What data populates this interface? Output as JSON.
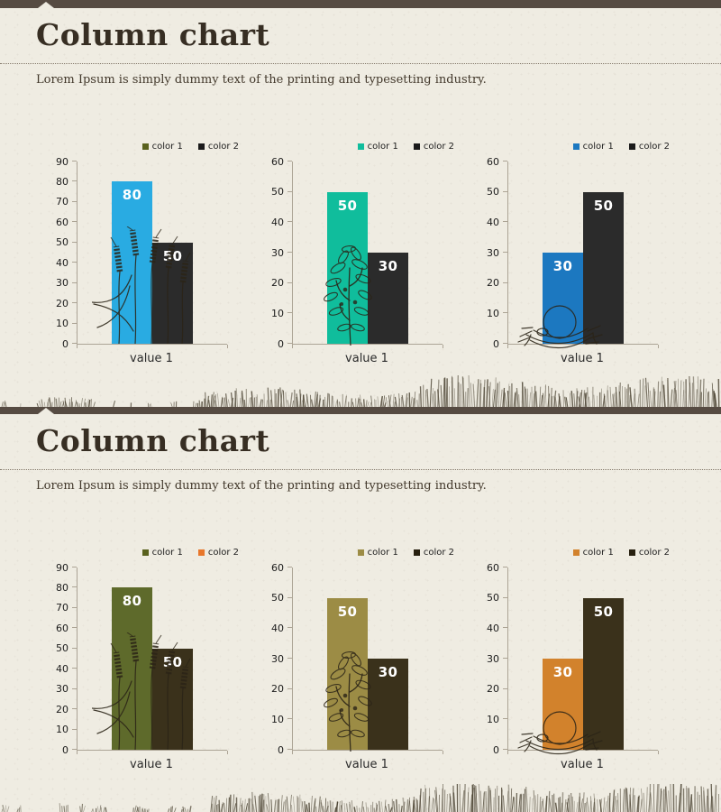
{
  "page": {
    "background": "#EFECE2",
    "accent_bar_color": "#564B42",
    "title_color": "#372E23",
    "axis_color": "#ACA495"
  },
  "panels": [
    {
      "title": "Column chart",
      "subtitle": "Lorem Ipsum is simply dummy text of the printing and typesetting industry.",
      "chart_ids": [
        0,
        1,
        2
      ]
    },
    {
      "title": "Column chart",
      "subtitle": "Lorem Ipsum is simply dummy text of the printing and typesetting industry.",
      "chart_ids": [
        3,
        4,
        5
      ]
    }
  ],
  "chart_data": [
    {
      "type": "bar",
      "categories": [
        "value 1"
      ],
      "series": [
        {
          "name": "color 1",
          "values": [
            80
          ],
          "bar_color": "#29ABE2",
          "legend_color": "#59611D",
          "label_color": "#FFFFFF"
        },
        {
          "name": "color 2",
          "values": [
            50
          ],
          "bar_color": "#2B2B2B",
          "legend_color": "#1A1A1A",
          "label_color": "#FFFFFF"
        }
      ],
      "ylim": [
        0,
        90
      ],
      "yticks": [
        0,
        10,
        20,
        30,
        40,
        50,
        60,
        70,
        80,
        90
      ],
      "legend_position": "top-right",
      "grid": false,
      "decoration": "wheat-illustration"
    },
    {
      "type": "bar",
      "categories": [
        "value 1"
      ],
      "series": [
        {
          "name": "color 1",
          "values": [
            50
          ],
          "bar_color": "#10BD9C",
          "legend_color": "#10BD9C",
          "label_color": "#FFFFFF"
        },
        {
          "name": "color 2",
          "values": [
            30
          ],
          "bar_color": "#2B2B2B",
          "legend_color": "#1A1A1A",
          "label_color": "#FFFFFF"
        }
      ],
      "ylim": [
        0,
        60
      ],
      "yticks": [
        0,
        10,
        20,
        30,
        40,
        50,
        60
      ],
      "legend_position": "top-right",
      "grid": false,
      "decoration": "sapling-illustration"
    },
    {
      "type": "bar",
      "categories": [
        "value 1"
      ],
      "series": [
        {
          "name": "color 1",
          "values": [
            30
          ],
          "bar_color": "#1C78C0",
          "legend_color": "#1C78C0",
          "label_color": "#FFFFFF"
        },
        {
          "name": "color 2",
          "values": [
            50
          ],
          "bar_color": "#2B2B2B",
          "legend_color": "#1A1A1A",
          "label_color": "#FFFFFF"
        }
      ],
      "ylim": [
        0,
        60
      ],
      "yticks": [
        0,
        10,
        20,
        30,
        40,
        50,
        60
      ],
      "legend_position": "top-right",
      "grid": false,
      "decoration": "nest-illustration"
    },
    {
      "type": "bar",
      "categories": [
        "value 1"
      ],
      "series": [
        {
          "name": "color 1",
          "values": [
            80
          ],
          "bar_color": "#5E6A2B",
          "legend_color": "#59611D",
          "label_color": "#FFFFFF"
        },
        {
          "name": "color 2",
          "values": [
            50
          ],
          "bar_color": "#3A311B",
          "legend_color": "#E8772B",
          "label_color": "#FFFFFF"
        }
      ],
      "ylim": [
        0,
        90
      ],
      "yticks": [
        0,
        10,
        20,
        30,
        40,
        50,
        60,
        70,
        80,
        90
      ],
      "legend_position": "top-right",
      "grid": false,
      "decoration": "wheat-illustration"
    },
    {
      "type": "bar",
      "categories": [
        "value 1"
      ],
      "series": [
        {
          "name": "color 1",
          "values": [
            50
          ],
          "bar_color": "#9C8C45",
          "legend_color": "#9C8C45",
          "label_color": "#FFFFFF"
        },
        {
          "name": "color 2",
          "values": [
            30
          ],
          "bar_color": "#3A311B",
          "legend_color": "#27200F",
          "label_color": "#FFFFFF"
        }
      ],
      "ylim": [
        0,
        60
      ],
      "yticks": [
        0,
        10,
        20,
        30,
        40,
        50,
        60
      ],
      "legend_position": "top-right",
      "grid": false,
      "decoration": "sapling-illustration"
    },
    {
      "type": "bar",
      "categories": [
        "value 1"
      ],
      "series": [
        {
          "name": "color 1",
          "values": [
            30
          ],
          "bar_color": "#D2822C",
          "legend_color": "#D2822C",
          "label_color": "#FFFFFF"
        },
        {
          "name": "color 2",
          "values": [
            50
          ],
          "bar_color": "#3A311B",
          "legend_color": "#27200F",
          "label_color": "#FFFFFF"
        }
      ],
      "ylim": [
        0,
        60
      ],
      "yticks": [
        0,
        10,
        20,
        30,
        40,
        50,
        60
      ],
      "legend_position": "top-right",
      "grid": false,
      "decoration": "nest-illustration"
    }
  ]
}
